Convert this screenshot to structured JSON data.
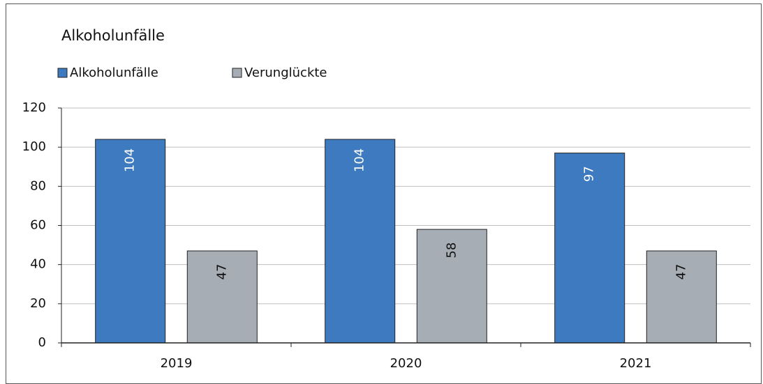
{
  "chart_data": {
    "type": "bar",
    "title": "Alkoholunfälle",
    "categories": [
      "2019",
      "2020",
      "2021"
    ],
    "series": [
      {
        "name": "Alkoholunfälle",
        "color": "#3d7abf",
        "values": [
          104,
          104,
          97
        ]
      },
      {
        "name": "Verunglückte",
        "color": "#a6adb4",
        "values": [
          47,
          58,
          47
        ]
      }
    ],
    "ylim": [
      0,
      120
    ],
    "yticks": [
      0,
      20,
      40,
      60,
      80,
      100,
      120
    ],
    "grid": true,
    "legend": "top-left"
  }
}
